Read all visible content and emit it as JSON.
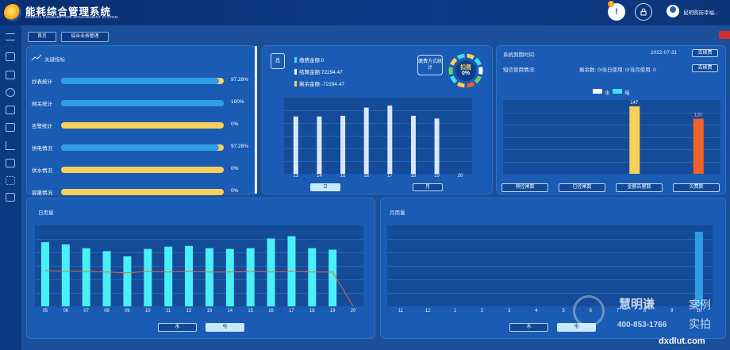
{
  "header": {
    "title": "能耗综合管理系统",
    "subtitle": "ENERGY CONSUMPTION MANAGEMENT SYSTEM",
    "alert_badge": "1",
    "username": "昆明购街幸福..."
  },
  "breadcrumb": {
    "home": "首页",
    "current": "综合业务管理"
  },
  "kpi": {
    "title": "关键指标",
    "items": [
      {
        "label": "抄表统计",
        "value": "97.28%",
        "fraction": 0.9728
      },
      {
        "label": "网关统计",
        "value": "100%",
        "fraction": 1.0
      },
      {
        "label": "告警统计",
        "value": "0%",
        "fraction": 0
      },
      {
        "label": "供电情况",
        "value": "97.28%",
        "fraction": 0.9728
      },
      {
        "label": "供水情况",
        "value": "0%",
        "fraction": 0
      },
      {
        "label": "容量情况",
        "value": "0%",
        "fraction": 0
      }
    ]
  },
  "fee": {
    "side_label": "总",
    "balance_label": "缴费金额:0",
    "settled_label": "结算金额:72294.47",
    "remaining_label": "剩余金额:-72294.47",
    "method_label": "缴费方式统计",
    "ring_label": "扣费",
    "ring_value": "0%",
    "tab_day": "日",
    "tab_month": "月",
    "chart_data": {
      "type": "bar",
      "categories": [
        "13",
        "14",
        "15",
        "16",
        "17",
        "18",
        "19",
        "20"
      ],
      "values": [
        0.84,
        0.84,
        0.85,
        0.97,
        1.0,
        0.85,
        0.81,
        null
      ],
      "ylim": [
        0,
        1
      ]
    }
  },
  "system": {
    "expire_label": "系统到期时间:",
    "expire_value": "2022-07-31",
    "sms_label": "短信使用情况:",
    "sms_value": "剩余数: 0/当日使用: 0/当月使用: 0",
    "renew_label": "去续费",
    "legend_water": "水",
    "legend_elec": "电",
    "colors": {
      "water": "#f7d05a",
      "elec": "#f0622a"
    },
    "buttons": [
      "预控闸数",
      "已控闸数",
      "金额告警数",
      "欠费数"
    ],
    "chart_data": {
      "type": "bar",
      "categories": [
        "预控闸数",
        "已控闸数",
        "金额告警数",
        "欠费数"
      ],
      "series": [
        {
          "name": "水",
          "values": [
            0,
            0,
            147,
            0
          ]
        },
        {
          "name": "电",
          "values": [
            0,
            0,
            0,
            120
          ]
        }
      ],
      "ylim": [
        0,
        147
      ]
    }
  },
  "daily": {
    "title": "日用量",
    "tab_water": "水",
    "tab_elec": "电",
    "chart_data": {
      "type": "bar",
      "categories": [
        "05",
        "06",
        "07",
        "08",
        "09",
        "10",
        "11",
        "12",
        "13",
        "14",
        "15",
        "16",
        "17",
        "18",
        "19",
        "20"
      ],
      "series": [
        {
          "values": [
            0.86,
            0.83,
            0.78,
            0.74,
            0.67,
            0.77,
            0.8,
            0.81,
            0.78,
            0.77,
            0.78,
            0.91,
            0.94,
            0.78,
            0.76,
            0
          ]
        },
        {
          "values": [
            0.48,
            0.47,
            0.47,
            0.46,
            0.45,
            0.47,
            0.46,
            0.47,
            0.46,
            0.46,
            0.47,
            0.46,
            0.47,
            0.46,
            0.46,
            0
          ]
        }
      ],
      "ylim": [
        0,
        1
      ]
    }
  },
  "monthly": {
    "title": "月用量",
    "tab_water": "水",
    "tab_elec": "电",
    "chart_data": {
      "type": "bar",
      "categories": [
        "11",
        "12",
        "1",
        "2",
        "3",
        "4",
        "5",
        "6",
        "7",
        "8",
        "9",
        "10"
      ],
      "values": [
        0,
        0,
        0,
        0,
        0,
        0,
        0,
        0,
        0,
        0,
        0,
        1.0
      ],
      "ylim": [
        0,
        1
      ]
    }
  },
  "watermark": {
    "brand": "慧明谦",
    "phone": "400-853-1766",
    "tag1": "案例",
    "tag2": "实拍",
    "site": "dxdlut.com"
  }
}
